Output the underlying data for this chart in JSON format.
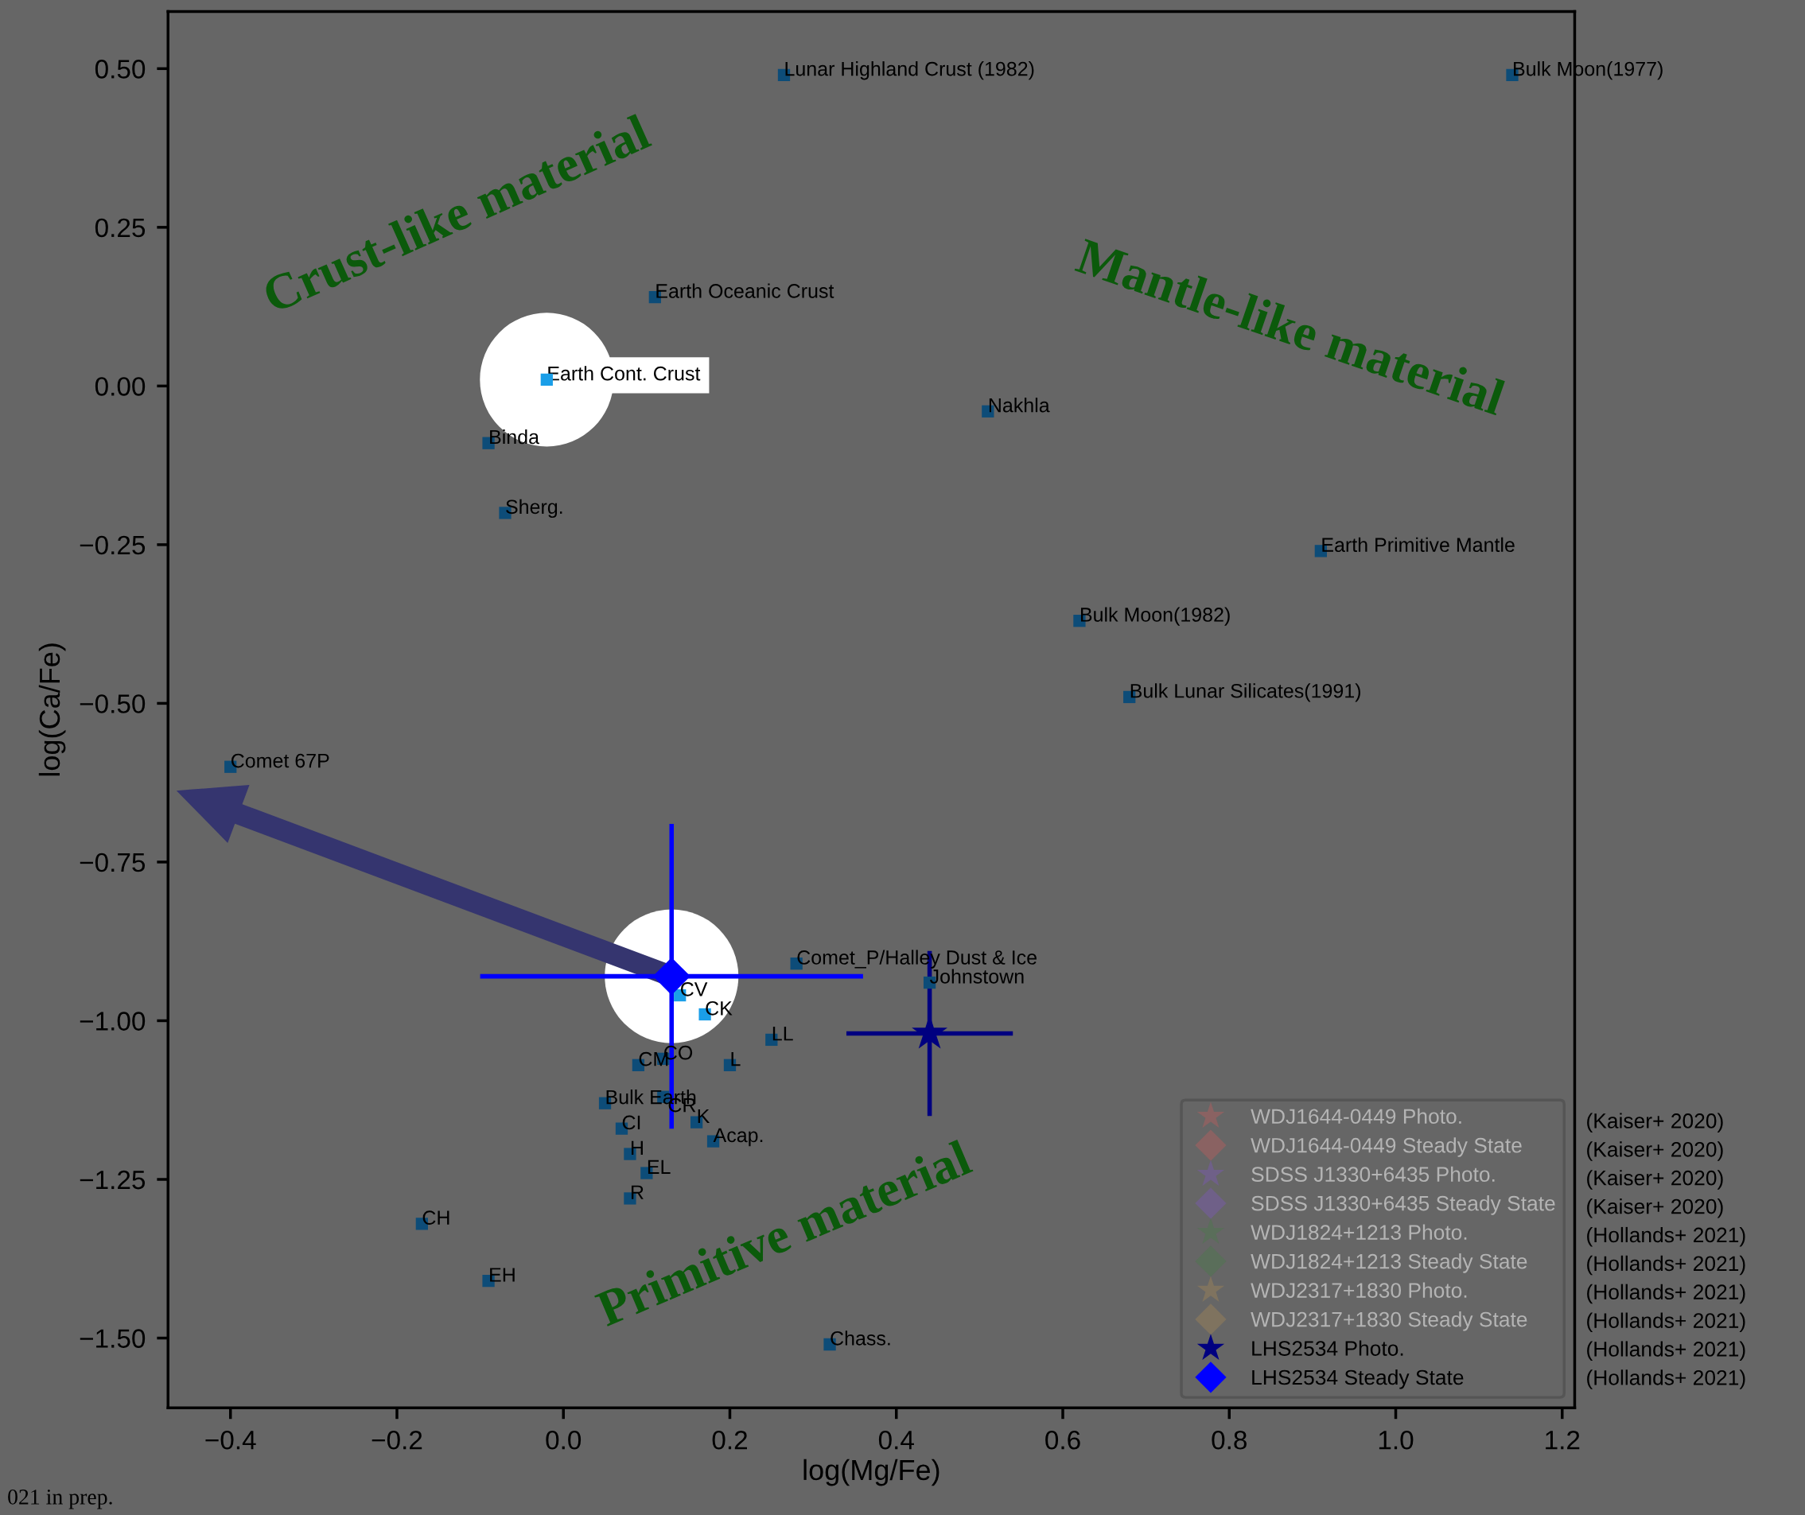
{
  "chart_data": {
    "type": "scatter",
    "xlabel": "log(Mg/Fe)",
    "ylabel": "log(Ca/Fe)",
    "xlim": [
      -0.475,
      1.215
    ],
    "ylim": [
      -1.61,
      0.59
    ],
    "xticks": [
      {
        "value": -0.4,
        "label": "−0.4"
      },
      {
        "value": -0.2,
        "label": "−0.2"
      },
      {
        "value": 0.0,
        "label": "0.0"
      },
      {
        "value": 0.2,
        "label": "0.2"
      },
      {
        "value": 0.4,
        "label": "0.4"
      },
      {
        "value": 0.6,
        "label": "0.6"
      },
      {
        "value": 0.8,
        "label": "0.8"
      },
      {
        "value": 1.0,
        "label": "1.0"
      },
      {
        "value": 1.2,
        "label": "1.2"
      }
    ],
    "yticks": [
      {
        "value": 0.5,
        "label": "0.50"
      },
      {
        "value": 0.25,
        "label": "0.25"
      },
      {
        "value": 0.0,
        "label": "0.00"
      },
      {
        "value": -0.25,
        "label": "−0.25"
      },
      {
        "value": -0.5,
        "label": "−0.50"
      },
      {
        "value": -0.75,
        "label": "−0.75"
      },
      {
        "value": -1.0,
        "label": "−1.00"
      },
      {
        "value": -1.25,
        "label": "−1.25"
      },
      {
        "value": -1.5,
        "label": "−1.50"
      }
    ],
    "grid": false,
    "legend": "bottom right",
    "series": [
      {
        "marker": "square",
        "x": [
          0.265,
          1.14,
          0.11,
          -0.02,
          0.51,
          -0.09,
          -0.07,
          0.91,
          0.62,
          0.68,
          -0.4,
          0.28,
          0.44,
          0.14,
          0.17,
          0.25,
          0.12,
          0.09,
          0.2,
          0.05,
          0.12,
          0.07,
          0.16,
          0.18,
          0.08,
          0.1,
          0.08,
          -0.17,
          -0.09,
          0.32
        ],
        "values": [
          0.49,
          0.49,
          0.14,
          0.01,
          -0.04,
          -0.09,
          -0.2,
          -0.26,
          -0.37,
          -0.49,
          -0.6,
          -0.91,
          -0.94,
          -0.96,
          -0.99,
          -1.03,
          -1.06,
          -1.07,
          -1.07,
          -1.13,
          -1.12,
          -1.17,
          -1.16,
          -1.19,
          -1.21,
          -1.24,
          -1.28,
          -1.32,
          -1.41,
          -1.51
        ],
        "colors": [
          "#0d4c78",
          "#0d4c78",
          "#0d4c78",
          "#1a9ee8",
          "#0d4c78",
          "#0d4c78",
          "#0d4c78",
          "#0d4c78",
          "#0d4c78",
          "#0d4c78",
          "#0d4c78",
          "#0d4c78",
          "#0d4c78",
          "#1a9ee8",
          "#1a9ee8",
          "#0d4c78",
          "#0d4c78",
          "#0d4c78",
          "#0d4c78",
          "#0d4c78",
          "#0d4c78",
          "#0d4c78",
          "#0d4c78",
          "#0d4c78",
          "#0d4c78",
          "#0d4c78",
          "#0d4c78",
          "#0d4c78",
          "#0d4c78",
          "#0d4c78"
        ]
      },
      {
        "name": "WDJ1644-0449 Photo.",
        "marker": "star",
        "color": "#8a6262"
      },
      {
        "name": "WDJ1644-0449 Steady State",
        "marker": "diamond",
        "color": "#8a6262"
      },
      {
        "name": "SDSS J1330+6435 Photo.",
        "marker": "star",
        "color": "#6f6088"
      },
      {
        "name": "SDSS J1330+6435 Steady State",
        "marker": "diamond",
        "color": "#6f6088"
      },
      {
        "name": "WDJ1824+1213 Photo.",
        "marker": "star",
        "color": "#5a6e5a"
      },
      {
        "name": "WDJ1824+1213 Steady State",
        "marker": "diamond",
        "color": "#5a6e5a"
      },
      {
        "name": "WDJ2317+1830 Photo.",
        "marker": "star",
        "color": "#7f735f"
      },
      {
        "name": "WDJ2317+1830 Steady State",
        "marker": "diamond",
        "color": "#7f735f"
      },
      {
        "name": "LHS2534 Photo.",
        "marker": "star",
        "color": "#000080",
        "x": [
          0.44
        ],
        "values": [
          -1.02
        ],
        "errors": [
          0.13
        ],
        "xerrors": [
          0.1
        ]
      },
      {
        "name": "LHS2534 Steady State",
        "marker": "diamond",
        "color": "#0000ff",
        "x": [
          0.13
        ],
        "values": [
          -0.93
        ],
        "errors": [
          0.24
        ],
        "xerrors": [
          0.23
        ]
      }
    ],
    "annotations": [
      "Crust-like material",
      "Mantle-like material",
      "Primitive material",
      "021 in prep.",
      "(Kaiser+ 2020)",
      "(Kaiser+ 2020)",
      "(Kaiser+ 2020)",
      "(Kaiser+ 2020)",
      "(Hollands+ 2021)",
      "(Hollands+ 2021)",
      "(Hollands+ 2021)",
      "(Hollands+ 2021)",
      "(Hollands+ 2021)",
      "(Hollands+ 2021)",
      {
        "text": "Lunar Highland Crust (1982)",
        "x": 0.265,
        "y": 0.49
      },
      {
        "text": "Bulk Moon(1977)",
        "x": 1.14,
        "y": 0.49
      },
      {
        "text": "Earth Oceanic Crust",
        "x": 0.11,
        "y": 0.14
      },
      {
        "text": "Earth Cont. Crust",
        "x": -0.02,
        "y": 0.01
      },
      {
        "text": "Nakhla",
        "x": 0.51,
        "y": -0.04
      },
      {
        "text": "Binda",
        "x": -0.09,
        "y": -0.09
      },
      {
        "text": "Sherg.",
        "x": -0.07,
        "y": -0.2
      },
      {
        "text": "Earth Primitive Mantle",
        "x": 0.91,
        "y": -0.26
      },
      {
        "text": "Bulk Moon(1982)",
        "x": 0.62,
        "y": -0.37
      },
      {
        "text": "Bulk Lunar Silicates(1991)",
        "x": 0.68,
        "y": -0.49
      },
      {
        "text": "Comet 67P",
        "x": -0.4,
        "y": -0.6
      },
      {
        "text": "Comet_P/Halley Dust & Ice",
        "x": 0.28,
        "y": -0.91
      },
      {
        "text": "Johnstown",
        "x": 0.44,
        "y": -0.94
      },
      {
        "text": "CV",
        "x": 0.14,
        "y": -0.96
      },
      {
        "text": "CK",
        "x": 0.17,
        "y": -0.99
      },
      {
        "text": "LL",
        "x": 0.25,
        "y": -1.03
      },
      {
        "text": "CO",
        "x": 0.12,
        "y": -1.06
      },
      {
        "text": "CM",
        "x": 0.09,
        "y": -1.07
      },
      {
        "text": "L",
        "x": 0.2,
        "y": -1.07
      },
      {
        "text": "Bulk Earth",
        "x": 0.05,
        "y": -1.13
      },
      {
        "text": "CR",
        "x": 0.12,
        "y": -1.12
      },
      {
        "text": "CI",
        "x": 0.07,
        "y": -1.17
      },
      {
        "text": "K",
        "x": 0.16,
        "y": -1.16
      },
      {
        "text": "Acap.",
        "x": 0.18,
        "y": -1.19
      },
      {
        "text": "H",
        "x": 0.08,
        "y": -1.21
      },
      {
        "text": "EL",
        "x": 0.1,
        "y": -1.24
      },
      {
        "text": "R",
        "x": 0.08,
        "y": -1.28
      },
      {
        "text": "CH",
        "x": -0.17,
        "y": -1.32
      },
      {
        "text": "EH",
        "x": -0.09,
        "y": -1.41
      },
      {
        "text": "Chass.",
        "x": 0.32,
        "y": -1.51
      }
    ]
  }
}
